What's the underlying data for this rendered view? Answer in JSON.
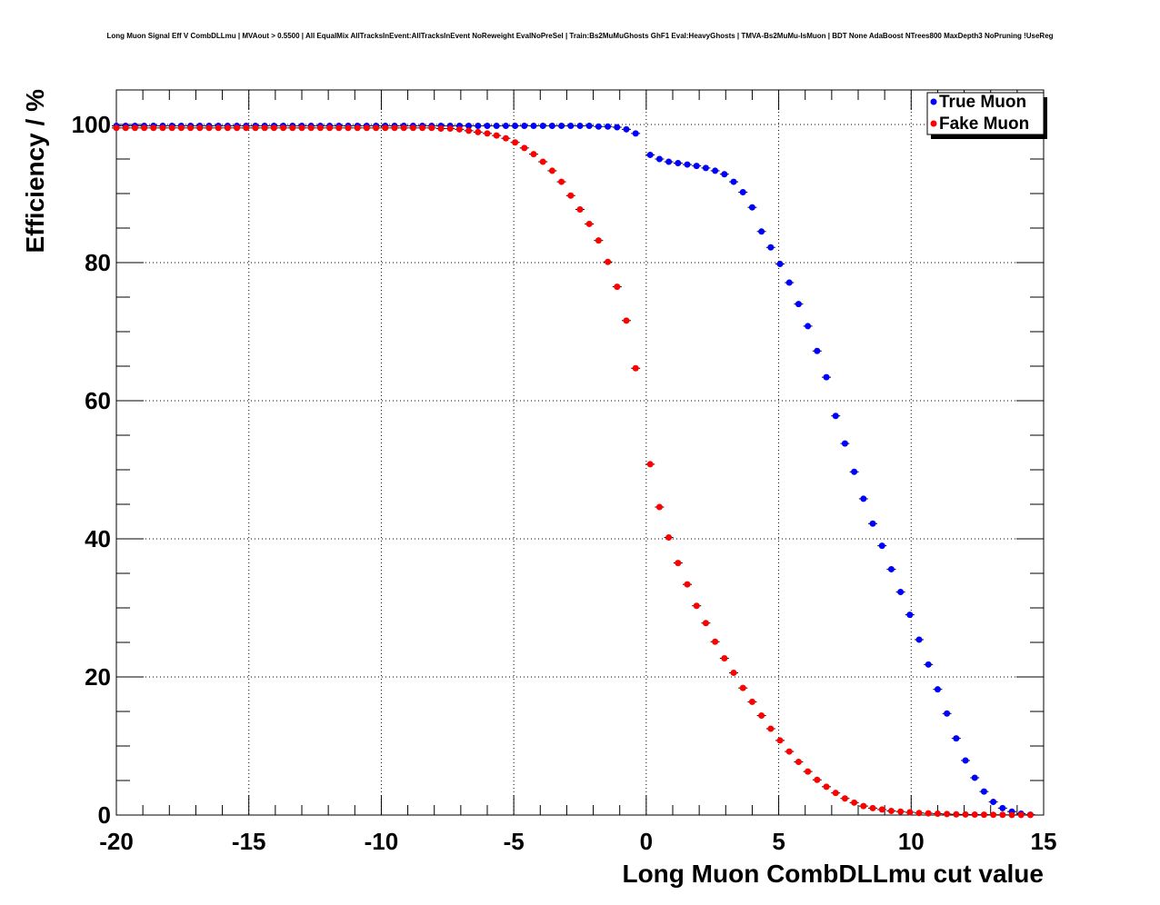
{
  "chart_data": {
    "type": "scatter",
    "title": "Long Muon Signal Eff V CombDLLmu | MVAout > 0.5500 | All EqualMix AllTracksInEvent:AllTracksInEvent NoReweight EvalNoPreSel | Train:Bs2MuMuGhosts GhF1 Eval:HeavyGhosts | TMVA-Bs2MuMu-IsMuon | BDT None AdaBoost NTrees800 MaxDepth3 NoPruning !UseReg",
    "xlabel": "Long Muon CombDLLmu cut value",
    "ylabel": "Efficiency / %",
    "xlim": [
      -20,
      15
    ],
    "ylim": [
      0,
      105
    ],
    "xticks": [
      "-20",
      "-15",
      "-10",
      "-5",
      "0",
      "5",
      "10",
      "15"
    ],
    "yticks": [
      "0",
      "20",
      "40",
      "60",
      "80",
      "100"
    ],
    "grid": true,
    "legend_position": "top-right",
    "series": [
      {
        "name": "True Muon",
        "color": "#0000ff",
        "points": [
          [
            -20.0,
            99.8
          ],
          [
            -19.65,
            99.8
          ],
          [
            -19.3,
            99.8
          ],
          [
            -18.95,
            99.8
          ],
          [
            -18.6,
            99.8
          ],
          [
            -18.25,
            99.8
          ],
          [
            -17.9,
            99.8
          ],
          [
            -17.55,
            99.8
          ],
          [
            -17.2,
            99.8
          ],
          [
            -16.85,
            99.8
          ],
          [
            -16.5,
            99.8
          ],
          [
            -16.15,
            99.8
          ],
          [
            -15.8,
            99.8
          ],
          [
            -15.45,
            99.8
          ],
          [
            -15.1,
            99.8
          ],
          [
            -14.75,
            99.8
          ],
          [
            -14.4,
            99.8
          ],
          [
            -14.05,
            99.8
          ],
          [
            -13.7,
            99.8
          ],
          [
            -13.35,
            99.8
          ],
          [
            -13.0,
            99.8
          ],
          [
            -12.65,
            99.8
          ],
          [
            -12.3,
            99.8
          ],
          [
            -11.95,
            99.8
          ],
          [
            -11.6,
            99.8
          ],
          [
            -11.25,
            99.8
          ],
          [
            -10.9,
            99.8
          ],
          [
            -10.55,
            99.8
          ],
          [
            -10.2,
            99.8
          ],
          [
            -9.85,
            99.8
          ],
          [
            -9.5,
            99.8
          ],
          [
            -9.15,
            99.8
          ],
          [
            -8.8,
            99.8
          ],
          [
            -8.45,
            99.8
          ],
          [
            -8.1,
            99.8
          ],
          [
            -7.75,
            99.8
          ],
          [
            -7.4,
            99.8
          ],
          [
            -7.05,
            99.8
          ],
          [
            -6.7,
            99.8
          ],
          [
            -6.35,
            99.8
          ],
          [
            -6.0,
            99.8
          ],
          [
            -5.65,
            99.8
          ],
          [
            -5.3,
            99.8
          ],
          [
            -4.95,
            99.8
          ],
          [
            -4.6,
            99.8
          ],
          [
            -4.25,
            99.8
          ],
          [
            -3.9,
            99.8
          ],
          [
            -3.55,
            99.8
          ],
          [
            -3.2,
            99.8
          ],
          [
            -2.85,
            99.8
          ],
          [
            -2.5,
            99.8
          ],
          [
            -2.15,
            99.8
          ],
          [
            -1.8,
            99.7
          ],
          [
            -1.45,
            99.7
          ],
          [
            -1.1,
            99.6
          ],
          [
            -0.75,
            99.3
          ],
          [
            -0.4,
            98.7
          ],
          [
            0.15,
            95.6
          ],
          [
            0.5,
            95.0
          ],
          [
            0.85,
            94.6
          ],
          [
            1.2,
            94.4
          ],
          [
            1.55,
            94.2
          ],
          [
            1.9,
            94.0
          ],
          [
            2.25,
            93.7
          ],
          [
            2.6,
            93.3
          ],
          [
            2.95,
            92.8
          ],
          [
            3.3,
            91.7
          ],
          [
            3.65,
            90.2
          ],
          [
            4.0,
            88.0
          ],
          [
            4.35,
            84.5
          ],
          [
            4.7,
            82.2
          ],
          [
            5.05,
            79.8
          ],
          [
            5.4,
            77.1
          ],
          [
            5.75,
            74.0
          ],
          [
            6.1,
            70.8
          ],
          [
            6.45,
            67.2
          ],
          [
            6.8,
            63.4
          ],
          [
            7.15,
            57.8
          ],
          [
            7.5,
            53.8
          ],
          [
            7.85,
            49.7
          ],
          [
            8.2,
            45.8
          ],
          [
            8.55,
            42.2
          ],
          [
            8.9,
            39.0
          ],
          [
            9.25,
            35.6
          ],
          [
            9.6,
            32.3
          ],
          [
            9.95,
            29.0
          ],
          [
            10.3,
            25.4
          ],
          [
            10.65,
            21.8
          ],
          [
            11.0,
            18.2
          ],
          [
            11.35,
            14.7
          ],
          [
            11.7,
            11.1
          ],
          [
            12.05,
            7.9
          ],
          [
            12.4,
            5.4
          ],
          [
            12.75,
            3.4
          ],
          [
            13.1,
            1.9
          ],
          [
            13.45,
            1.0
          ],
          [
            13.8,
            0.5
          ],
          [
            14.15,
            0.2
          ],
          [
            14.5,
            0.05
          ]
        ]
      },
      {
        "name": "Fake Muon",
        "color": "#ff0000",
        "points": [
          [
            -20.0,
            99.5
          ],
          [
            -19.65,
            99.5
          ],
          [
            -19.3,
            99.5
          ],
          [
            -18.95,
            99.5
          ],
          [
            -18.6,
            99.5
          ],
          [
            -18.25,
            99.5
          ],
          [
            -17.9,
            99.5
          ],
          [
            -17.55,
            99.5
          ],
          [
            -17.2,
            99.5
          ],
          [
            -16.85,
            99.5
          ],
          [
            -16.5,
            99.5
          ],
          [
            -16.15,
            99.5
          ],
          [
            -15.8,
            99.5
          ],
          [
            -15.45,
            99.5
          ],
          [
            -15.1,
            99.5
          ],
          [
            -14.75,
            99.5
          ],
          [
            -14.4,
            99.5
          ],
          [
            -14.05,
            99.5
          ],
          [
            -13.7,
            99.5
          ],
          [
            -13.35,
            99.5
          ],
          [
            -13.0,
            99.5
          ],
          [
            -12.65,
            99.5
          ],
          [
            -12.3,
            99.5
          ],
          [
            -11.95,
            99.5
          ],
          [
            -11.6,
            99.5
          ],
          [
            -11.25,
            99.5
          ],
          [
            -10.9,
            99.5
          ],
          [
            -10.55,
            99.5
          ],
          [
            -10.2,
            99.5
          ],
          [
            -9.85,
            99.5
          ],
          [
            -9.5,
            99.5
          ],
          [
            -9.15,
            99.5
          ],
          [
            -8.8,
            99.5
          ],
          [
            -8.45,
            99.5
          ],
          [
            -8.1,
            99.5
          ],
          [
            -7.75,
            99.4
          ],
          [
            -7.4,
            99.4
          ],
          [
            -7.05,
            99.3
          ],
          [
            -6.7,
            99.1
          ],
          [
            -6.35,
            98.9
          ],
          [
            -6.0,
            98.7
          ],
          [
            -5.65,
            98.4
          ],
          [
            -5.3,
            98.0
          ],
          [
            -4.95,
            97.4
          ],
          [
            -4.6,
            96.6
          ],
          [
            -4.25,
            95.7
          ],
          [
            -3.9,
            94.6
          ],
          [
            -3.55,
            93.3
          ],
          [
            -3.2,
            91.7
          ],
          [
            -2.85,
            89.7
          ],
          [
            -2.5,
            87.7
          ],
          [
            -2.15,
            85.6
          ],
          [
            -1.8,
            83.2
          ],
          [
            -1.45,
            80.1
          ],
          [
            -1.1,
            76.5
          ],
          [
            -0.75,
            71.6
          ],
          [
            -0.4,
            64.7
          ],
          [
            0.15,
            50.8
          ],
          [
            0.5,
            44.6
          ],
          [
            0.85,
            40.2
          ],
          [
            1.2,
            36.5
          ],
          [
            1.55,
            33.4
          ],
          [
            1.9,
            30.3
          ],
          [
            2.25,
            27.8
          ],
          [
            2.6,
            25.1
          ],
          [
            2.95,
            22.7
          ],
          [
            3.3,
            20.6
          ],
          [
            3.65,
            18.4
          ],
          [
            4.0,
            16.4
          ],
          [
            4.35,
            14.4
          ],
          [
            4.7,
            12.5
          ],
          [
            5.05,
            10.8
          ],
          [
            5.4,
            9.2
          ],
          [
            5.75,
            7.7
          ],
          [
            6.1,
            6.3
          ],
          [
            6.45,
            5.1
          ],
          [
            6.8,
            4.1
          ],
          [
            7.15,
            3.2
          ],
          [
            7.5,
            2.4
          ],
          [
            7.85,
            1.8
          ],
          [
            8.2,
            1.3
          ],
          [
            8.55,
            1.0
          ],
          [
            8.9,
            0.8
          ],
          [
            9.25,
            0.6
          ],
          [
            9.6,
            0.5
          ],
          [
            9.95,
            0.4
          ],
          [
            10.3,
            0.3
          ],
          [
            10.65,
            0.25
          ],
          [
            11.0,
            0.2
          ],
          [
            11.35,
            0.15
          ],
          [
            11.7,
            0.1
          ],
          [
            12.05,
            0.08
          ],
          [
            12.4,
            0.06
          ],
          [
            12.75,
            0.05
          ],
          [
            13.1,
            0.04
          ],
          [
            13.45,
            0.03
          ],
          [
            13.8,
            0.02
          ],
          [
            14.15,
            0.02
          ],
          [
            14.5,
            0.01
          ]
        ]
      }
    ]
  }
}
